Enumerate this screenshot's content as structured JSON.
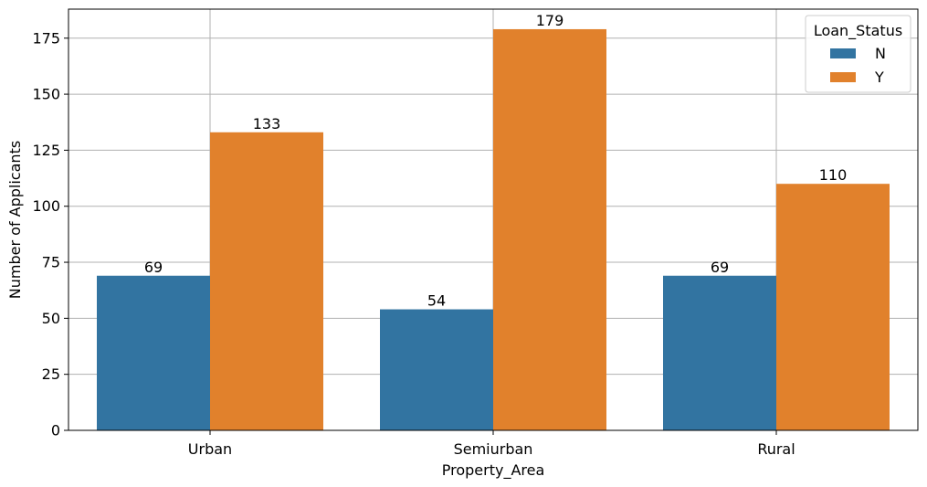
{
  "chart_data": {
    "type": "bar",
    "title": "",
    "xlabel": "Property_Area",
    "ylabel": "Number of Applicants",
    "categories": [
      "Urban",
      "Semiurban",
      "Rural"
    ],
    "series": [
      {
        "name": "N",
        "values": [
          69,
          54,
          69
        ],
        "color": "#3274a1"
      },
      {
        "name": "Y",
        "values": [
          133,
          179,
          110
        ],
        "color": "#e1812c"
      }
    ],
    "ylim": [
      0,
      187.95
    ],
    "yticks": [
      0,
      25,
      50,
      75,
      100,
      125,
      150,
      175
    ],
    "grid": true,
    "legend": {
      "title": "Loan_Status",
      "placement": "top-right"
    }
  }
}
